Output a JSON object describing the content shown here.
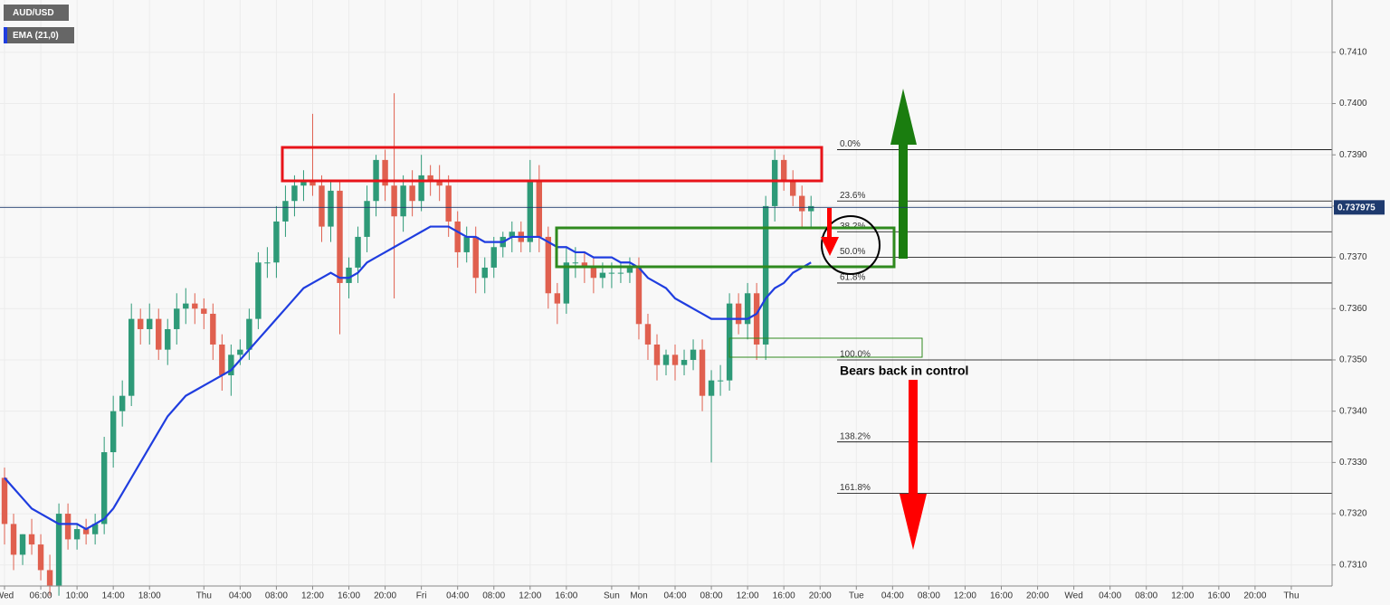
{
  "chart_data": {
    "type": "candlestick",
    "symbol": "AUD/USD",
    "up_color": "#2e9a78",
    "down_color": "#e0604f",
    "ylim": [
      0.73059,
      0.74202
    ],
    "yticks": [
      {
        "value": 0.731,
        "label": "0.7310"
      },
      {
        "value": 0.732,
        "label": "0.7320"
      },
      {
        "value": 0.733,
        "label": "0.7330"
      },
      {
        "value": 0.734,
        "label": "0.7340"
      },
      {
        "value": 0.735,
        "label": "0.7350"
      },
      {
        "value": 0.736,
        "label": "0.7360"
      },
      {
        "value": 0.737,
        "label": "0.7370"
      },
      {
        "value": 0.738,
        "label": "0.7380"
      },
      {
        "value": 0.739,
        "label": "0.7390"
      },
      {
        "value": 0.74,
        "label": "0.7400"
      },
      {
        "value": 0.741,
        "label": "0.7410"
      }
    ],
    "xlim": [
      -0.5,
      146.5
    ],
    "xticks": [
      {
        "value": 0,
        "label": "Wed"
      },
      {
        "value": 4,
        "label": "06:00"
      },
      {
        "value": 8,
        "label": "10:00"
      },
      {
        "value": 12,
        "label": "14:00"
      },
      {
        "value": 16,
        "label": "18:00"
      },
      {
        "value": 22,
        "label": "Thu"
      },
      {
        "value": 26,
        "label": "04:00"
      },
      {
        "value": 30,
        "label": "08:00"
      },
      {
        "value": 34,
        "label": "12:00"
      },
      {
        "value": 38,
        "label": "16:00"
      },
      {
        "value": 42,
        "label": "20:00"
      },
      {
        "value": 46,
        "label": "Fri"
      },
      {
        "value": 50,
        "label": "04:00"
      },
      {
        "value": 54,
        "label": "08:00"
      },
      {
        "value": 58,
        "label": "12:00"
      },
      {
        "value": 62,
        "label": "16:00"
      },
      {
        "value": 67,
        "label": "Sun"
      },
      {
        "value": 70,
        "label": "Mon"
      },
      {
        "value": 74,
        "label": "04:00"
      },
      {
        "value": 78,
        "label": "08:00"
      },
      {
        "value": 82,
        "label": "12:00"
      },
      {
        "value": 86,
        "label": "16:00"
      },
      {
        "value": 90,
        "label": "20:00"
      },
      {
        "value": 94,
        "label": "Tue"
      },
      {
        "value": 98,
        "label": "04:00"
      },
      {
        "value": 102,
        "label": "08:00"
      },
      {
        "value": 106,
        "label": "12:00"
      },
      {
        "value": 110,
        "label": "16:00"
      },
      {
        "value": 114,
        "label": "20:00"
      },
      {
        "value": 118,
        "label": "Wed"
      },
      {
        "value": 122,
        "label": "04:00"
      },
      {
        "value": 126,
        "label": "08:00"
      },
      {
        "value": 130,
        "label": "12:00"
      },
      {
        "value": 134,
        "label": "16:00"
      },
      {
        "value": 138,
        "label": "20:00"
      },
      {
        "value": 142,
        "label": "Thu"
      }
    ],
    "open": [
      0.7327,
      0.7318,
      0.7312,
      0.7316,
      0.7314,
      0.7309,
      0.7306,
      0.732,
      0.7315,
      0.7317,
      0.7316,
      0.7318,
      0.7332,
      0.734,
      0.7343,
      0.7358,
      0.7356,
      0.7358,
      0.7352,
      0.7356,
      0.736,
      0.7361,
      0.736,
      0.7359,
      0.7353,
      0.7347,
      0.7351,
      0.7352,
      0.7358,
      0.7369,
      0.7369,
      0.7377,
      0.7381,
      0.7384,
      0.7385,
      0.7384,
      0.7376,
      0.7383,
      0.7365,
      0.7368,
      0.7374,
      0.7381,
      0.7389,
      0.7384,
      0.7378,
      0.7384,
      0.7381,
      0.7386,
      0.7385,
      0.7384,
      0.7377,
      0.7371,
      0.7374,
      0.7366,
      0.7368,
      0.7372,
      0.7374,
      0.7375,
      0.7373,
      0.7385,
      0.7374,
      0.7363,
      0.7361,
      0.7369,
      0.7369,
      0.7368,
      0.7366,
      0.7367,
      0.7367,
      0.7367,
      0.7368,
      0.7357,
      0.7353,
      0.7349,
      0.7351,
      0.7349,
      0.735,
      0.7352,
      0.7343,
      0.7346,
      0.7346,
      0.7361,
      0.7357,
      0.7363,
      0.7353,
      0.738,
      0.7389,
      0.7385,
      0.7382,
      0.7379
    ],
    "high": [
      0.7329,
      0.732,
      0.7316,
      0.7319,
      0.7316,
      0.7312,
      0.7322,
      0.7322,
      0.7318,
      0.7319,
      0.732,
      0.7335,
      0.7343,
      0.7346,
      0.7361,
      0.736,
      0.7361,
      0.736,
      0.7358,
      0.7363,
      0.7364,
      0.7363,
      0.7362,
      0.7361,
      0.7355,
      0.7353,
      0.7354,
      0.736,
      0.7371,
      0.7372,
      0.738,
      0.7384,
      0.7386,
      0.7387,
      0.7398,
      0.7386,
      0.7385,
      0.7385,
      0.737,
      0.7376,
      0.7384,
      0.739,
      0.7391,
      0.7402,
      0.7386,
      0.7387,
      0.739,
      0.7388,
      0.7388,
      0.7386,
      0.7379,
      0.7376,
      0.7376,
      0.737,
      0.7374,
      0.7375,
      0.7377,
      0.7377,
      0.7389,
      0.7388,
      0.7376,
      0.7365,
      0.7372,
      0.7372,
      0.7371,
      0.737,
      0.7369,
      0.7369,
      0.7369,
      0.737,
      0.737,
      0.7359,
      0.7355,
      0.7352,
      0.7353,
      0.7352,
      0.7354,
      0.7354,
      0.7348,
      0.7349,
      0.7363,
      0.7363,
      0.7365,
      0.7365,
      0.7382,
      0.7391,
      0.739,
      0.7387,
      0.7384,
      0.7382
    ],
    "low": [
      0.7314,
      0.7309,
      0.731,
      0.7312,
      0.7307,
      0.7304,
      0.7304,
      0.7313,
      0.7313,
      0.7314,
      0.7314,
      0.7316,
      0.7329,
      0.7337,
      0.7341,
      0.7353,
      0.7353,
      0.735,
      0.7349,
      0.7353,
      0.7357,
      0.7357,
      0.7356,
      0.735,
      0.7344,
      0.7343,
      0.7349,
      0.735,
      0.7356,
      0.7366,
      0.7366,
      0.7374,
      0.7378,
      0.7381,
      0.7382,
      0.7373,
      0.7373,
      0.7355,
      0.7362,
      0.7365,
      0.7371,
      0.7378,
      0.7381,
      0.7362,
      0.7375,
      0.7378,
      0.7379,
      0.7382,
      0.7381,
      0.7374,
      0.7368,
      0.7369,
      0.7363,
      0.7363,
      0.7366,
      0.737,
      0.7371,
      0.7371,
      0.7371,
      0.7371,
      0.736,
      0.7357,
      0.7359,
      0.7366,
      0.7365,
      0.7363,
      0.7364,
      0.7364,
      0.7365,
      0.7365,
      0.7354,
      0.735,
      0.7346,
      0.7347,
      0.7346,
      0.7347,
      0.7348,
      0.734,
      0.733,
      0.7343,
      0.7344,
      0.7355,
      0.7354,
      0.735,
      0.735,
      0.7377,
      0.7383,
      0.738,
      0.7376,
      0.7376
    ],
    "close": [
      0.7318,
      0.7312,
      0.7316,
      0.7314,
      0.7309,
      0.7306,
      0.732,
      0.7315,
      0.7317,
      0.7316,
      0.7318,
      0.7332,
      0.734,
      0.7343,
      0.7358,
      0.7356,
      0.7358,
      0.7352,
      0.7356,
      0.736,
      0.7361,
      0.736,
      0.7359,
      0.7353,
      0.7347,
      0.7351,
      0.7352,
      0.7358,
      0.7369,
      0.7369,
      0.7377,
      0.7381,
      0.7384,
      0.7385,
      0.7384,
      0.7376,
      0.7383,
      0.7365,
      0.7368,
      0.7374,
      0.7381,
      0.7389,
      0.7384,
      0.7378,
      0.7384,
      0.7381,
      0.7386,
      0.7385,
      0.7384,
      0.7377,
      0.7371,
      0.7374,
      0.7366,
      0.7368,
      0.7372,
      0.7374,
      0.7375,
      0.7373,
      0.7385,
      0.7374,
      0.7363,
      0.7361,
      0.7369,
      0.7369,
      0.7368,
      0.7366,
      0.7367,
      0.7367,
      0.7367,
      0.7368,
      0.7357,
      0.7353,
      0.7349,
      0.7351,
      0.7349,
      0.735,
      0.7352,
      0.7343,
      0.7346,
      0.7346,
      0.7361,
      0.7357,
      0.7363,
      0.7353,
      0.738,
      0.7389,
      0.7385,
      0.7382,
      0.7379,
      0.738
    ],
    "series": [
      {
        "name": "EMA (21,0)",
        "color": "#1f3ddf",
        "values": [
          0.7327,
          0.7325,
          0.7323,
          0.7321,
          0.732,
          0.7319,
          0.7318,
          0.7318,
          0.7318,
          0.7317,
          0.7318,
          0.7319,
          0.7321,
          0.7324,
          0.7327,
          0.733,
          0.7333,
          0.7336,
          0.7339,
          0.7341,
          0.7343,
          0.7344,
          0.7345,
          0.7346,
          0.7347,
          0.7348,
          0.735,
          0.7352,
          0.7354,
          0.7356,
          0.7358,
          0.736,
          0.7362,
          0.7364,
          0.7365,
          0.7366,
          0.7367,
          0.7366,
          0.7366,
          0.7367,
          0.7369,
          0.737,
          0.7371,
          0.7372,
          0.7373,
          0.7374,
          0.7375,
          0.7376,
          0.7376,
          0.7376,
          0.7375,
          0.7374,
          0.7374,
          0.7373,
          0.7373,
          0.7373,
          0.7374,
          0.7374,
          0.7374,
          0.7374,
          0.7373,
          0.7372,
          0.7372,
          0.7371,
          0.7371,
          0.737,
          0.737,
          0.737,
          0.7369,
          0.7369,
          0.7368,
          0.7366,
          0.7365,
          0.7364,
          0.7362,
          0.7361,
          0.736,
          0.7359,
          0.7358,
          0.7358,
          0.7358,
          0.7358,
          0.7358,
          0.7359,
          0.7362,
          0.7364,
          0.7365,
          0.7367,
          0.7368,
          0.7369
        ]
      }
    ],
    "last_price": 0.737975,
    "fib_levels": [
      {
        "label": "0.0%",
        "value": 0.7391
      },
      {
        "label": "23.6%",
        "value": 0.7381
      },
      {
        "label": "38.2%",
        "value": 0.7375
      },
      {
        "label": "50.0%",
        "value": 0.737
      },
      {
        "label": "61.8%",
        "value": 0.7365
      },
      {
        "label": "100.0%",
        "value": 0.735
      },
      {
        "label": "138.2%",
        "value": 0.7334
      },
      {
        "label": "161.8%",
        "value": 0.7324
      }
    ],
    "annotation": "Bears back in control",
    "grid": true
  }
}
